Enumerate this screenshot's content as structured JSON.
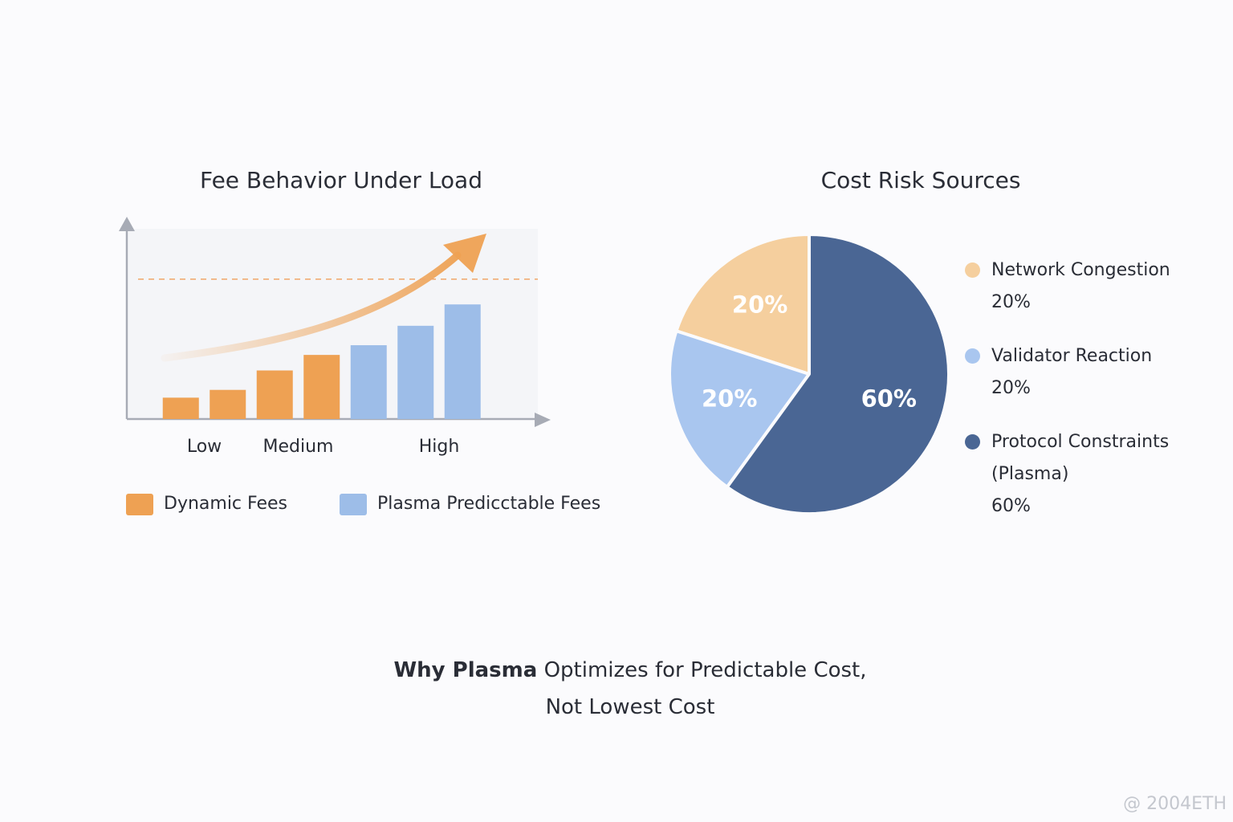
{
  "chart_data": [
    {
      "type": "bar",
      "title": "Fee Behavior Under Load",
      "categories": [
        null,
        "Low",
        null,
        "Medium",
        null,
        null,
        "High"
      ],
      "series": [
        {
          "name": "Dynamic Fees",
          "color": "#eea153",
          "values": [
            11,
            15,
            25,
            33,
            null,
            null,
            null
          ]
        },
        {
          "name": "Plasma Predicctable Fees",
          "color": "#9dbde8",
          "values": [
            null,
            null,
            null,
            null,
            38,
            48,
            59
          ]
        }
      ],
      "ylim": [
        0,
        100
      ],
      "reference_line": 72
    },
    {
      "type": "pie",
      "title": "Cost Risk Sources",
      "categories": [
        "Network Congestion",
        "Validator Reaction",
        "Protocol Constraints (Plasma)"
      ],
      "values": [
        20,
        20,
        60
      ],
      "value_labels": [
        "20%",
        "20%",
        "60%"
      ],
      "colors": [
        "#f5cf9e",
        "#a9c6ef",
        "#4a6694"
      ]
    }
  ],
  "caption": {
    "bold": "Why Plasma",
    "text": "Optimizes for Predictable Cost,",
    "line2": "Not Lowest Cost"
  },
  "watermark": "@ 2004ETH"
}
